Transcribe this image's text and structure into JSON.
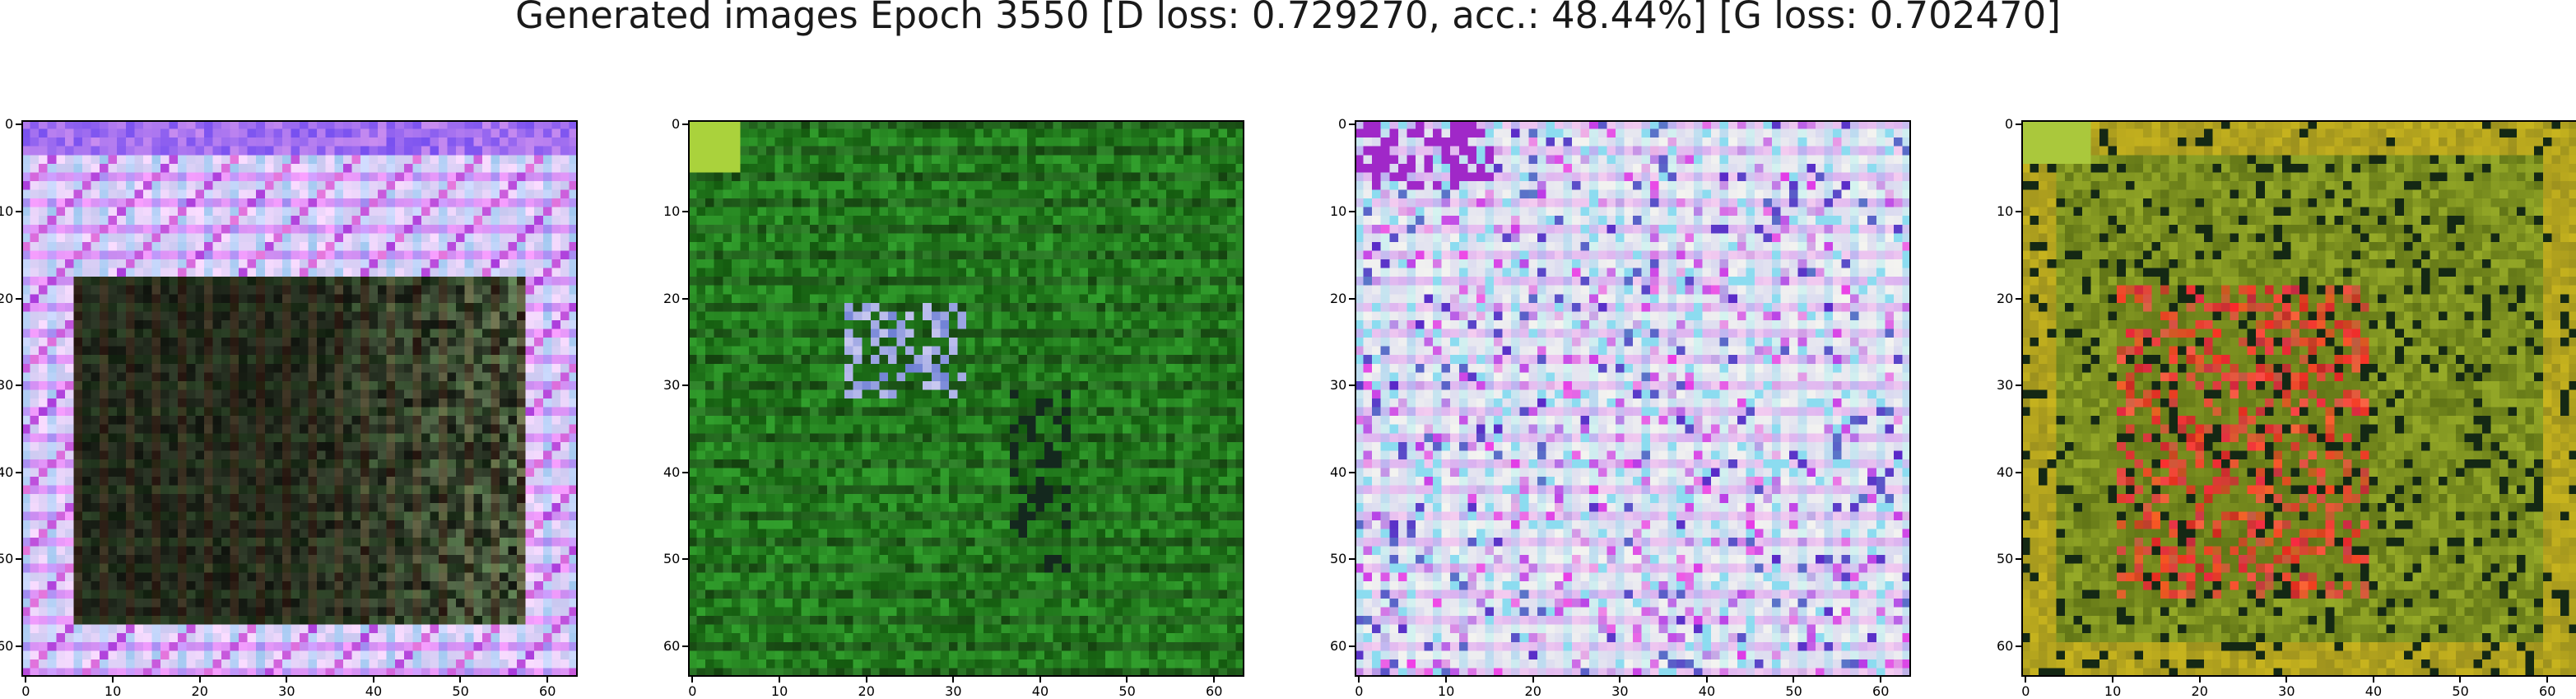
{
  "figure": {
    "title": "Generated images Epoch 3550 [D loss: 0.729270, acc.: 48.44%] [G loss: 0.702470]"
  },
  "chart_data": [
    {
      "type": "heatmap",
      "content": "generated image 1",
      "palette": "purple-white border, dark center",
      "xlim": [
        0,
        63
      ],
      "ylim": [
        63,
        0
      ],
      "xticks": [
        "0",
        "10",
        "20",
        "30",
        "40",
        "50",
        "60"
      ],
      "yticks": [
        "0",
        "10",
        "20",
        "30",
        "40",
        "50",
        "60"
      ]
    },
    {
      "type": "heatmap",
      "content": "generated image 2",
      "palette": "green with dark/purple spots",
      "xlim": [
        0,
        63
      ],
      "ylim": [
        63,
        0
      ],
      "xticks": [
        "0",
        "10",
        "20",
        "30",
        "40",
        "50",
        "60"
      ],
      "yticks": [
        "0",
        "10",
        "20",
        "30",
        "40",
        "50",
        "60"
      ]
    },
    {
      "type": "heatmap",
      "content": "generated image 3",
      "palette": "pale white-pink-blue grid",
      "xlim": [
        0,
        63
      ],
      "ylim": [
        63,
        0
      ],
      "xticks": [
        "0",
        "10",
        "20",
        "30",
        "40",
        "50",
        "60"
      ],
      "yticks": [
        "0",
        "10",
        "20",
        "30",
        "40",
        "50",
        "60"
      ]
    },
    {
      "type": "heatmap",
      "content": "generated image 4",
      "palette": "olive-green with red patches",
      "xlim": [
        0,
        63
      ],
      "ylim": [
        63,
        0
      ],
      "xticks": [
        "0",
        "10",
        "20",
        "30",
        "40",
        "50",
        "60"
      ],
      "yticks": [
        "0",
        "10",
        "20",
        "30",
        "40",
        "50",
        "60"
      ]
    }
  ]
}
